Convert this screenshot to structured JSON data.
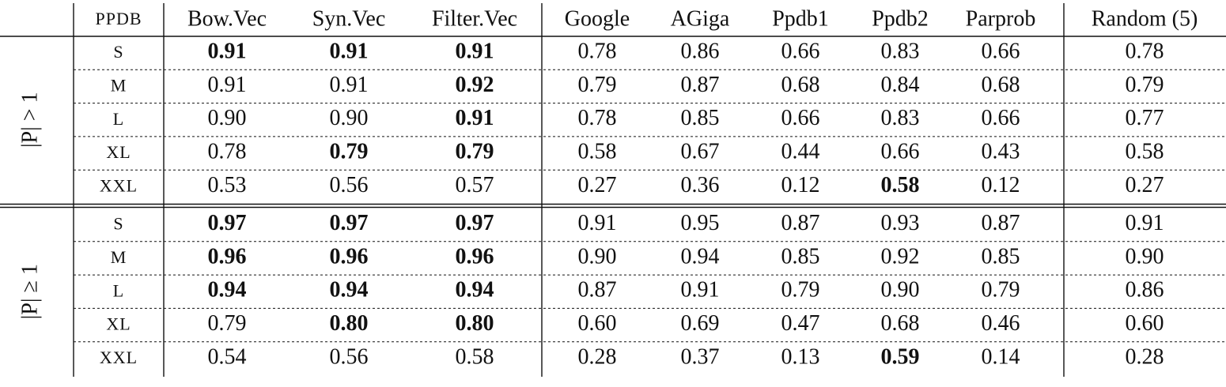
{
  "table": {
    "header": [
      "PPDB",
      "Bow.Vec",
      "Syn.Vec",
      "Filter.Vec",
      "Google",
      "AGiga",
      "Ppdb1",
      "Ppdb2",
      "Parprob",
      "Random (5)"
    ],
    "groups": [
      {
        "label": "|P| > 1",
        "rows": [
          {
            "size": "S",
            "cells": [
              "0.91",
              "0.91",
              "0.91",
              "0.78",
              "0.86",
              "0.66",
              "0.83",
              "0.66",
              "0.78"
            ],
            "bold": [
              0,
              1,
              2
            ]
          },
          {
            "size": "M",
            "cells": [
              "0.91",
              "0.91",
              "0.92",
              "0.79",
              "0.87",
              "0.68",
              "0.84",
              "0.68",
              "0.79"
            ],
            "bold": [
              2
            ]
          },
          {
            "size": "L",
            "cells": [
              "0.90",
              "0.90",
              "0.91",
              "0.78",
              "0.85",
              "0.66",
              "0.83",
              "0.66",
              "0.77"
            ],
            "bold": [
              2
            ]
          },
          {
            "size": "XL",
            "cells": [
              "0.78",
              "0.79",
              "0.79",
              "0.58",
              "0.67",
              "0.44",
              "0.66",
              "0.43",
              "0.58"
            ],
            "bold": [
              1,
              2
            ]
          },
          {
            "size": "XXL",
            "cells": [
              "0.53",
              "0.56",
              "0.57",
              "0.27",
              "0.36",
              "0.12",
              "0.58",
              "0.12",
              "0.27"
            ],
            "bold": [
              6
            ]
          }
        ]
      },
      {
        "label": "|P| ≥ 1",
        "rows": [
          {
            "size": "S",
            "cells": [
              "0.97",
              "0.97",
              "0.97",
              "0.91",
              "0.95",
              "0.87",
              "0.93",
              "0.87",
              "0.91"
            ],
            "bold": [
              0,
              1,
              2
            ]
          },
          {
            "size": "M",
            "cells": [
              "0.96",
              "0.96",
              "0.96",
              "0.90",
              "0.94",
              "0.85",
              "0.92",
              "0.85",
              "0.90"
            ],
            "bold": [
              0,
              1,
              2
            ]
          },
          {
            "size": "L",
            "cells": [
              "0.94",
              "0.94",
              "0.94",
              "0.87",
              "0.91",
              "0.79",
              "0.90",
              "0.79",
              "0.86"
            ],
            "bold": [
              0,
              1,
              2
            ]
          },
          {
            "size": "XL",
            "cells": [
              "0.79",
              "0.80",
              "0.80",
              "0.60",
              "0.69",
              "0.47",
              "0.68",
              "0.46",
              "0.60"
            ],
            "bold": [
              1,
              2
            ]
          },
          {
            "size": "XXL",
            "cells": [
              "0.54",
              "0.56",
              "0.58",
              "0.28",
              "0.37",
              "0.13",
              "0.59",
              "0.14",
              "0.28"
            ],
            "bold": [
              6
            ]
          }
        ]
      }
    ]
  }
}
